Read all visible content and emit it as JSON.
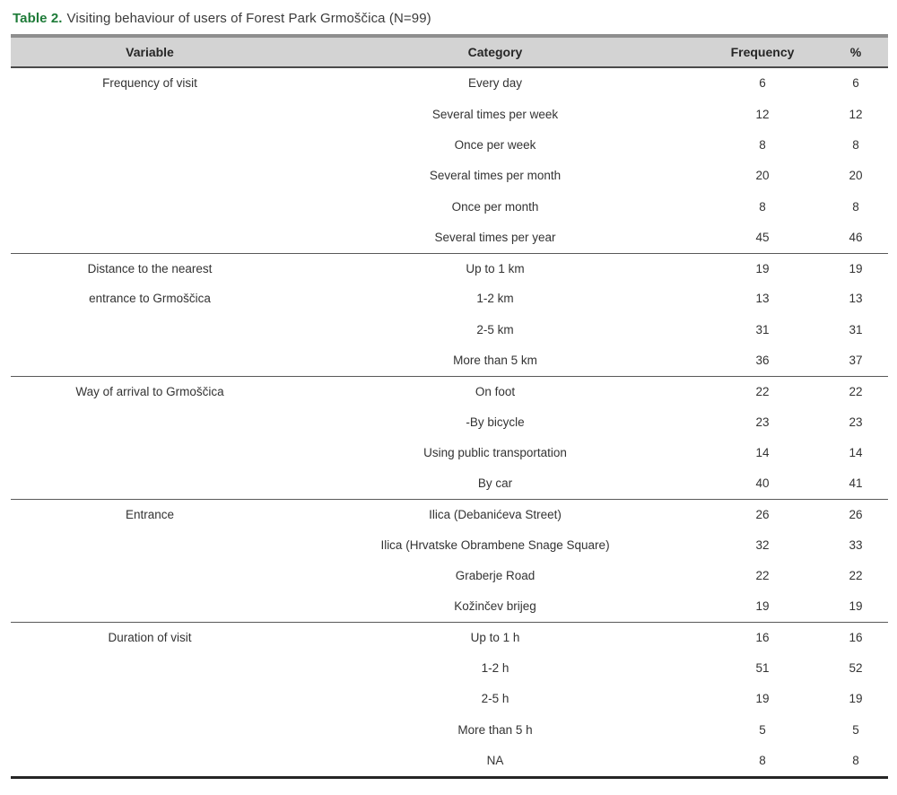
{
  "caption": {
    "label": "Table 2.",
    "text": "Visiting behaviour of users of Forest Park Grmoščica (N=99)"
  },
  "colors": {
    "accent_green": "#1e7b38",
    "header_bg": "#d3d3d3",
    "rule_dark": "#262626"
  },
  "table": {
    "headers": [
      "Variable",
      "Category",
      "Frequency",
      "%"
    ],
    "sections": [
      {
        "variable": "Frequency of visit",
        "rows": [
          {
            "variable": "Frequency of visit",
            "category": "Every day",
            "frequency": "6",
            "percent": "6"
          },
          {
            "variable": "",
            "category": "Several times per week",
            "frequency": "12",
            "percent": "12"
          },
          {
            "variable": "",
            "category": "Once per week",
            "frequency": "8",
            "percent": "8"
          },
          {
            "variable": "",
            "category": "Several times per month",
            "frequency": "20",
            "percent": "20"
          },
          {
            "variable": "",
            "category": "Once per month",
            "frequency": "8",
            "percent": "8"
          },
          {
            "variable": "",
            "category": "Several times per year",
            "frequency": "45",
            "percent": "46"
          }
        ]
      },
      {
        "variable": "Distance to the nearest entrance to Grmoščica",
        "rows": [
          {
            "variable": "Distance to the nearest",
            "category": "Up to 1 km",
            "frequency": "19",
            "percent": "19"
          },
          {
            "variable": "entrance to Grmoščica",
            "category": "1-2 km",
            "frequency": "13",
            "percent": "13"
          },
          {
            "variable": "",
            "category": "2-5 km",
            "frequency": "31",
            "percent": "31"
          },
          {
            "variable": "",
            "category": "More than 5 km",
            "frequency": "36",
            "percent": "37"
          }
        ]
      },
      {
        "variable": "Way of arrival to Grmoščica",
        "rows": [
          {
            "variable": "Way of arrival to Grmoščica",
            "category": "On foot",
            "frequency": "22",
            "percent": "22"
          },
          {
            "variable": "",
            "category": "-By bicycle",
            "frequency": "23",
            "percent": "23"
          },
          {
            "variable": "",
            "category": "Using public transportation",
            "frequency": "14",
            "percent": "14"
          },
          {
            "variable": "",
            "category": "By car",
            "frequency": "40",
            "percent": "41"
          }
        ]
      },
      {
        "variable": "Entrance",
        "rows": [
          {
            "variable": "Entrance",
            "category": "Ilica (Debanićeva Street)",
            "frequency": "26",
            "percent": "26"
          },
          {
            "variable": "",
            "category": "Ilica (Hrvatske Obrambene Snage Square)",
            "frequency": "32",
            "percent": "33"
          },
          {
            "variable": "",
            "category": "Graberje Road",
            "frequency": "22",
            "percent": "22"
          },
          {
            "variable": "",
            "category": "Kožinčev brijeg",
            "frequency": "19",
            "percent": "19"
          }
        ]
      },
      {
        "variable": "Duration of visit",
        "rows": [
          {
            "variable": "Duration of visit",
            "category": "Up to 1 h",
            "frequency": "16",
            "percent": "16"
          },
          {
            "variable": "",
            "category": "1-2 h",
            "frequency": "51",
            "percent": "52"
          },
          {
            "variable": "",
            "category": "2-5 h",
            "frequency": "19",
            "percent": "19"
          },
          {
            "variable": "",
            "category": "More than 5 h",
            "frequency": "5",
            "percent": "5"
          },
          {
            "variable": "",
            "category": "NA",
            "frequency": "8",
            "percent": "8"
          }
        ]
      }
    ]
  }
}
